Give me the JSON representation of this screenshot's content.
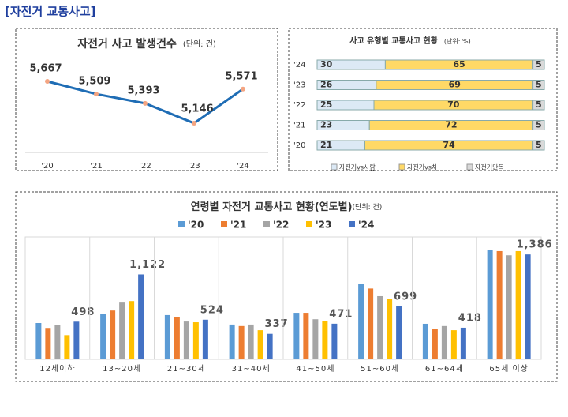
{
  "header": {
    "title": "[자전거 교통사고]"
  },
  "chart_data": [
    {
      "type": "line",
      "title": "자전거 사고 발생건수",
      "subtitle": "(단위: 건)",
      "categories": [
        "'20",
        "'21",
        "'22",
        "'23",
        "'24"
      ],
      "values": [
        5667,
        5509,
        5393,
        5146,
        5571
      ],
      "value_labels": [
        "5,667",
        "5,509",
        "5,393",
        "5,146",
        "5,571"
      ],
      "color": "#1f6db5",
      "marker_color": "#f4a582"
    },
    {
      "type": "stacked_barh",
      "title": "사고 유형별 교통사고 현황",
      "subtitle": "(단위: %)",
      "categories": [
        "'24",
        "'23",
        "'22",
        "'21",
        "'20"
      ],
      "series": [
        {
          "name": "자전거vs사람",
          "color": "#dce9f5",
          "values": [
            30,
            26,
            25,
            23,
            21
          ]
        },
        {
          "name": "자전거vs차",
          "color": "#ffd966",
          "values": [
            65,
            69,
            70,
            72,
            74
          ]
        },
        {
          "name": "자전거단독",
          "color": "#d9d9d9",
          "values": [
            5,
            5,
            5,
            5,
            5
          ]
        }
      ]
    },
    {
      "type": "grouped_bar",
      "title": "연령별 자전거 교통사고 현황(연도별)",
      "subtitle": "(단위: 건)",
      "categories": [
        "12세이하",
        "13~20세",
        "21~30세",
        "31~40세",
        "41~50세",
        "51~60세",
        "61~64세",
        "65세 이상"
      ],
      "series": [
        {
          "name": "'20",
          "color": "#5b9bd5",
          "values": [
            480,
            600,
            585,
            460,
            615,
            1000,
            470,
            1440
          ]
        },
        {
          "name": "'21",
          "color": "#ed7d31",
          "values": [
            415,
            645,
            560,
            440,
            615,
            935,
            405,
            1430
          ]
        },
        {
          "name": "'22",
          "color": "#a5a5a5",
          "values": [
            450,
            750,
            500,
            460,
            530,
            835,
            440,
            1375
          ]
        },
        {
          "name": "'23",
          "color": "#ffc000",
          "values": [
            320,
            770,
            490,
            385,
            510,
            800,
            385,
            1430
          ]
        },
        {
          "name": "'24",
          "color": "#4472c4",
          "values": [
            498,
            1122,
            524,
            337,
            471,
            699,
            418,
            1386
          ],
          "value_labels": [
            "498",
            "1,122",
            "524",
            "337",
            "471",
            "699",
            "418",
            "1,386"
          ]
        }
      ]
    }
  ]
}
